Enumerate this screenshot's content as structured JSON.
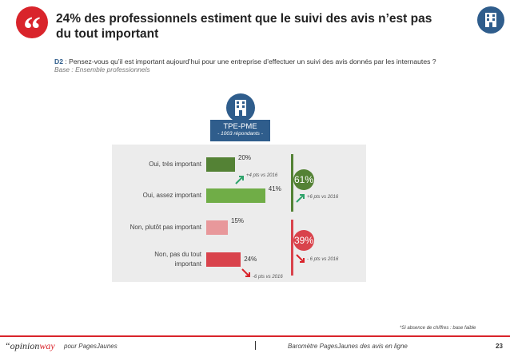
{
  "header": {
    "quote_glyph": "“",
    "title": "24% des professionnels estiment que le suivi des avis n’est pas du tout important"
  },
  "question": {
    "code": "D2",
    "text": " : Pensez-vous qu’il est important aujourd’hui pour une entreprise d’effectuer un suivi des avis donnés par les internautes ?",
    "base": "Base : Ensemble professionnels"
  },
  "segment": {
    "title": "TPE-PME",
    "subtitle": "- 1003 répondants -"
  },
  "chart_data": {
    "type": "bar",
    "orientation": "horizontal",
    "categories": [
      "Oui, très important",
      "Oui, assez important",
      "Non, plutôt pas important",
      "Non,  pas du tout important"
    ],
    "values": [
      20,
      41,
      15,
      24
    ],
    "value_labels": [
      "20%",
      "41%",
      "15%",
      "24%"
    ],
    "bar_colors": [
      "#548235",
      "#70ad47",
      "#e8989b",
      "#d9434c"
    ],
    "evolutions": [
      "+4 pts vs 2016",
      "",
      "",
      "-6 pts vs 2016"
    ],
    "evolution_directions": [
      "up",
      "",
      "",
      "down"
    ],
    "totals": [
      {
        "label": "61%",
        "value": 61,
        "evolution": "+6 pts vs 2016",
        "direction": "up",
        "color": "#548235"
      },
      {
        "label": "39%",
        "value": 39,
        "evolution": "- 6 pts vs 2016",
        "direction": "down",
        "color": "#d9434c"
      }
    ],
    "colors": {
      "up": "#2ea36b",
      "down": "#d9242b"
    }
  },
  "footer": {
    "note": "*Si absence de chiffres : base faible",
    "logo_opinion": "“opinion",
    "logo_way": "way",
    "partner": "pour  PagesJaunes",
    "study": "Baromètre PagesJaunes des avis en ligne",
    "page": "23"
  }
}
